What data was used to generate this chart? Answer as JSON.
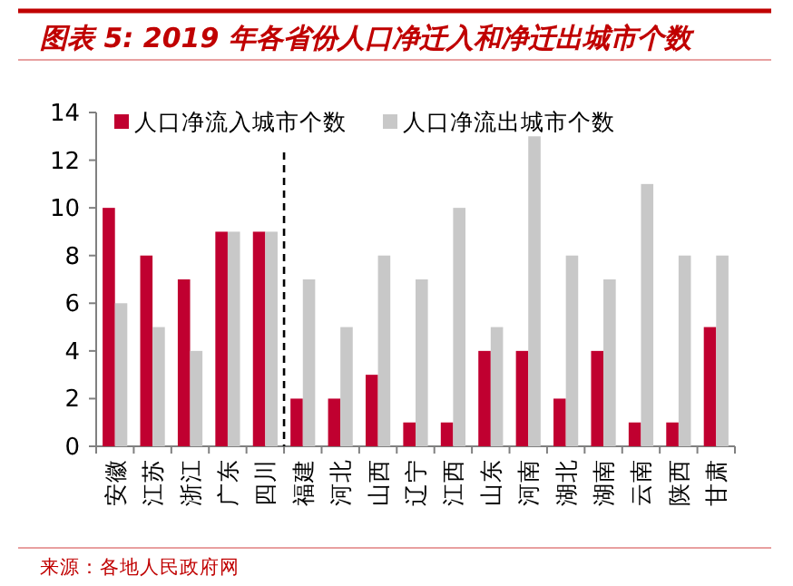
{
  "chart_data": {
    "type": "bar",
    "title": "图表 5: 2019 年各省份人口净迁入和净迁出城市个数",
    "categories": [
      "安徽",
      "江苏",
      "浙江",
      "广东",
      "四川",
      "福建",
      "河北",
      "山西",
      "辽宁",
      "江西",
      "山东",
      "河南",
      "湖北",
      "湖南",
      "云南",
      "陕西",
      "甘肃"
    ],
    "series": [
      {
        "name": "人口净流入城市个数",
        "color": "#c00030",
        "values": [
          10,
          8,
          7,
          9,
          9,
          2,
          2,
          3,
          1,
          1,
          4,
          4,
          2,
          4,
          1,
          1,
          5
        ]
      },
      {
        "name": "人口净流出城市个数",
        "color": "#c8c8c8",
        "values": [
          6,
          5,
          4,
          9,
          9,
          7,
          5,
          8,
          7,
          10,
          5,
          13,
          8,
          7,
          11,
          8,
          8
        ]
      }
    ],
    "ylim": [
      0,
      14
    ],
    "yticks": [
      0,
      2,
      4,
      6,
      8,
      10,
      12,
      14
    ],
    "legend": "top",
    "annotations": [
      "来源：各地人民政府网"
    ]
  }
}
